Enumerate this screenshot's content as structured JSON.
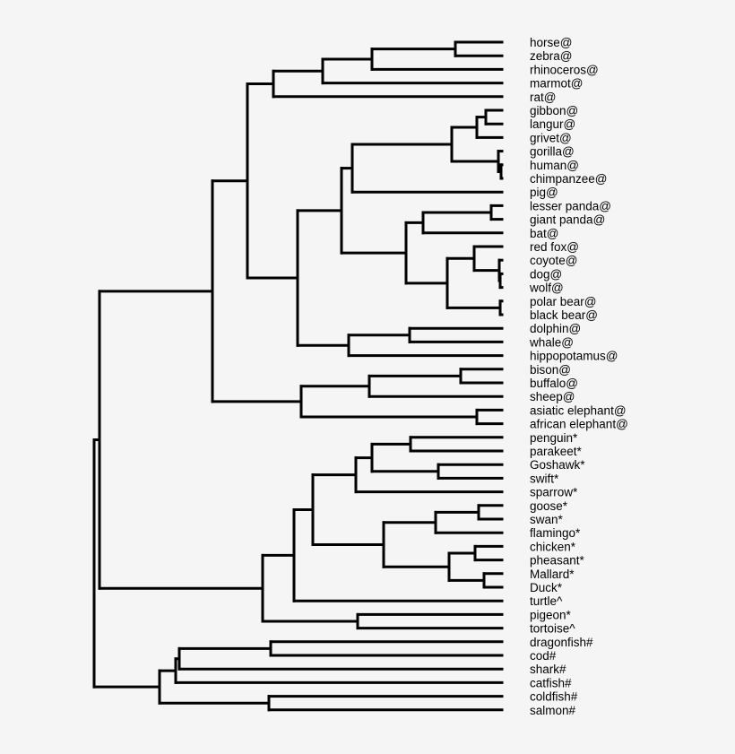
{
  "chart_data": {
    "type": "dendrogram",
    "orientation": "leaves-right",
    "line_color": "#000000",
    "background": "#f5f5f5",
    "labels": [
      "horse@",
      "zebra@",
      "rhinoceros@",
      "marmot@",
      "rat@",
      "gibbon@",
      "langur@",
      "grivet@",
      "gorilla@",
      "human@",
      "chimpanzee@",
      "pig@",
      "lesser panda@",
      "giant panda@",
      "bat@",
      "red fox@",
      "coyote@",
      "dog@",
      "wolf@",
      "polar bear@",
      "black bear@",
      "dolphin@",
      "whale@",
      "hippopotamus@",
      "bison@",
      "buffalo@",
      "sheep@",
      "asiatic elephant@",
      "african elephant@",
      "penguin*",
      "parakeet*",
      "Goshawk*",
      "swift*",
      "sparrow*",
      "goose*",
      "swan*",
      "flamingo*",
      "chicken*",
      "pheasant*",
      "Mallard*",
      "Duck*",
      "turtle^",
      "pigeon*",
      "tortoise^",
      "dragonfish#",
      "cod#",
      "shark#",
      "catfish#",
      "coldfish#",
      "salmon#"
    ],
    "tree": [
      455,
      [
        449,
        [
          323,
          [
            284,
            [
              255,
              [
                200,
                [
                  145,
                  [
                    52,
                    0,
                    1
                  ],
                  2
                ],
                3
              ],
              4
            ],
            [
              228,
              [
                179,
                [
                  167,
                  [
                    56,
                    [
                      28,
                      [
                        18,
                        5,
                        6
                      ],
                      7
                    ],
                    [
                      4,
                      8,
                      [
                        1,
                        9,
                        10
                      ]
                    ]
                  ],
                  11
                ],
                [
                  107,
                  [
                    88,
                    [
                      12,
                      12,
                      13
                    ],
                    14
                  ],
                  [
                    61,
                    [
                      31,
                      15,
                      [
                        3,
                        16,
                        [
                          2,
                          17,
                          18
                        ]
                      ]
                    ],
                    [
                      2,
                      19,
                      20
                    ]
                  ]
                ]
              ],
              [
                171,
                [
                  103,
                  21,
                  22
                ],
                23
              ]
            ]
          ],
          [
            224,
            [
              148,
              [
                46,
                24,
                25
              ],
              26
            ],
            [
              28,
              27,
              28
            ]
          ]
        ],
        [
          267,
          [
            232,
            [
              211,
              [
                163,
                [
                  145,
                  [
                    102,
                    29,
                    30
                  ],
                  [
                    71,
                    31,
                    32
                  ]
                ],
                33
              ],
              [
                132,
                [
                  74,
                  [
                    26,
                    34,
                    35
                  ],
                  36
                ],
                [
                  59,
                  [
                    30,
                    37,
                    38
                  ],
                  [
                    20,
                    39,
                    40
                  ]
                ]
              ]
            ],
            41
          ],
          [
            161,
            42,
            43
          ]
        ]
      ],
      [
        382,
        [
          364,
          [
            360,
            [
              258,
              44,
              45
            ],
            46
          ],
          47
        ],
        [
          260,
          48,
          49
        ]
      ]
    ]
  }
}
